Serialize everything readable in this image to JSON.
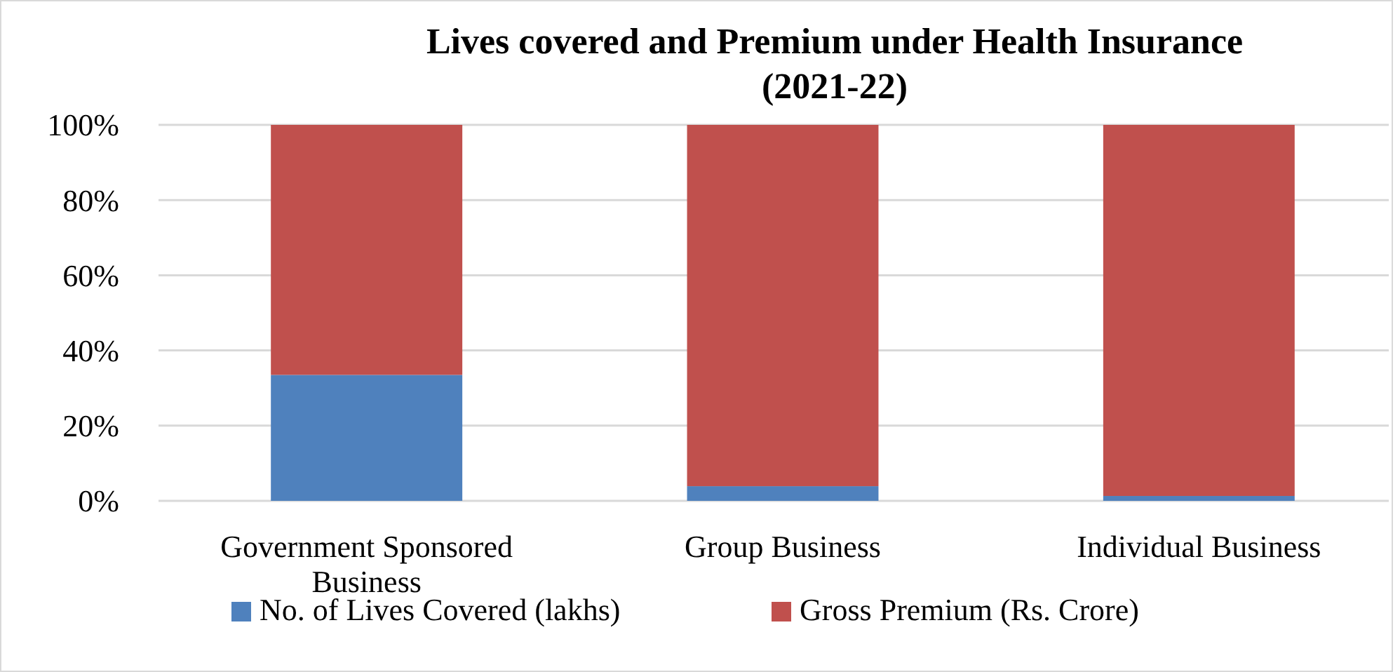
{
  "chart_data": {
    "type": "bar",
    "title": "Lives covered and Premium under Health Insurance (2021-22)",
    "categories": [
      "Government Sponsored Business",
      "Group Business",
      "Individual Business"
    ],
    "stacked": true,
    "series": [
      {
        "name": "No. of Lives Covered (lakhs)",
        "color": "#4f81bd",
        "values": [
          33.5,
          3.9,
          1.3
        ]
      },
      {
        "name": "Gross Premium (Rs. Crore)",
        "color": "#c0504d",
        "values": [
          66.5,
          96.1,
          98.7
        ]
      }
    ],
    "ylim": [
      0,
      100
    ],
    "yticks": [
      {
        "value": 0,
        "label": "0%"
      },
      {
        "value": 20,
        "label": "20%"
      },
      {
        "value": 40,
        "label": "40%"
      },
      {
        "value": 60,
        "label": "60%"
      },
      {
        "value": 80,
        "label": "80%"
      },
      {
        "value": 100,
        "label": "100%"
      }
    ],
    "grid": "y",
    "legend": "bottom"
  }
}
